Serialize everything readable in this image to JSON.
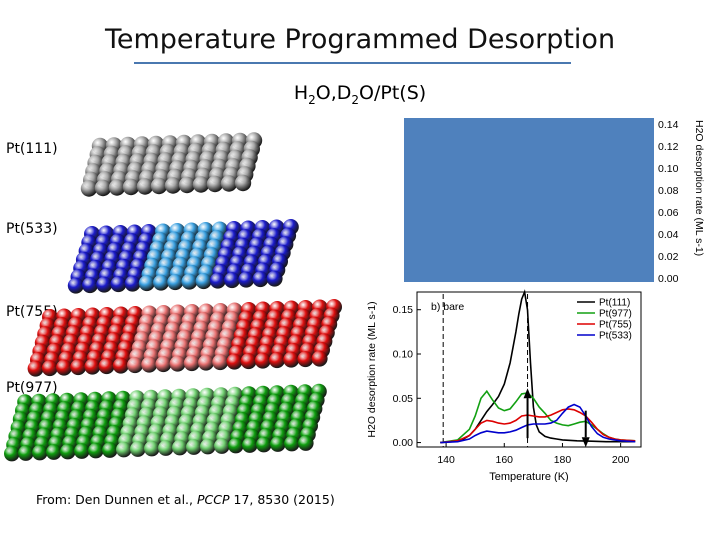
{
  "title": "Temperature Programmed Desorption",
  "subtitle": "H2O,D2O/Pt(S)",
  "surfaces": [
    {
      "label": "Pt(111)",
      "color": "#111111"
    },
    {
      "label": "Pt(533)",
      "color": "#1a1aa0"
    },
    {
      "label": "Pt(755)",
      "color": "#cc0000"
    },
    {
      "label": "Pt(977)",
      "color": "#0a8a0a"
    }
  ],
  "source": {
    "prefix": "From: Den Dunnen et al., ",
    "journal": "PCCP",
    "suffix": " 17, 8530 (2015)"
  },
  "top_panel": {
    "ylabel": "H2O desorption rate (ML s-1)",
    "yticks": [
      "0.14",
      "0.12",
      "0.10",
      "0.08",
      "0.06",
      "0.04",
      "0.02",
      "0.00"
    ],
    "fill_color": "#4f81bd"
  },
  "chart_data": {
    "type": "line",
    "panel_label": "b) bare",
    "xlabel": "Temperature (K)",
    "ylabel": "H2O desorption rate (ML s-1)",
    "xlim": [
      130,
      207
    ],
    "ylim": [
      -0.005,
      0.17
    ],
    "xticks": [
      140,
      160,
      180,
      200
    ],
    "yticks": [
      0.0,
      0.05,
      0.1,
      0.15
    ],
    "ytick_labels": [
      "0.00",
      "0.05",
      "0.10",
      "0.15"
    ],
    "vlines": [
      139,
      168
    ],
    "arrows": [
      {
        "x": 168,
        "direction": "up",
        "y_from": 0.04,
        "y_to": 0.045
      },
      {
        "x": 188,
        "direction": "down",
        "y_from": 0.035,
        "y_to": 0.0
      }
    ],
    "legend_position": "top-right",
    "series": [
      {
        "name": "Pt(111)",
        "color": "#000000",
        "x": [
          138,
          142,
          146,
          148,
          150,
          152,
          154,
          156,
          158,
          160,
          162,
          164,
          165,
          166,
          167,
          168,
          169,
          170,
          171,
          172,
          174,
          176,
          178,
          180,
          185,
          190,
          195,
          200,
          205
        ],
        "y": [
          0,
          0.001,
          0.004,
          0.008,
          0.015,
          0.025,
          0.035,
          0.043,
          0.052,
          0.066,
          0.09,
          0.125,
          0.145,
          0.162,
          0.17,
          0.15,
          0.09,
          0.04,
          0.02,
          0.012,
          0.007,
          0.005,
          0.004,
          0.003,
          0.002,
          0.0015,
          0.001,
          0.001,
          0.001
        ]
      },
      {
        "name": "Pt(977)",
        "color": "#12a012",
        "x": [
          138,
          144,
          148,
          150,
          152,
          154,
          156,
          158,
          160,
          162,
          164,
          166,
          168,
          170,
          172,
          174,
          176,
          178,
          180,
          182,
          184,
          186,
          188,
          190,
          192,
          194,
          196,
          198,
          200,
          205
        ],
        "y": [
          0,
          0.003,
          0.015,
          0.03,
          0.05,
          0.058,
          0.048,
          0.039,
          0.036,
          0.038,
          0.046,
          0.055,
          0.056,
          0.05,
          0.04,
          0.033,
          0.025,
          0.022,
          0.02,
          0.019,
          0.021,
          0.023,
          0.024,
          0.02,
          0.015,
          0.01,
          0.006,
          0.004,
          0.003,
          0.002
        ]
      },
      {
        "name": "Pt(755)",
        "color": "#dd0000",
        "x": [
          138,
          144,
          148,
          150,
          152,
          154,
          156,
          158,
          160,
          162,
          164,
          166,
          168,
          170,
          172,
          174,
          176,
          178,
          180,
          182,
          184,
          186,
          188,
          190,
          192,
          194,
          196,
          198,
          200,
          205
        ],
        "y": [
          0,
          0.002,
          0.008,
          0.015,
          0.022,
          0.025,
          0.024,
          0.022,
          0.021,
          0.022,
          0.025,
          0.03,
          0.031,
          0.03,
          0.029,
          0.029,
          0.031,
          0.034,
          0.037,
          0.038,
          0.037,
          0.034,
          0.03,
          0.023,
          0.015,
          0.009,
          0.006,
          0.004,
          0.003,
          0.002
        ]
      },
      {
        "name": "Pt(533)",
        "color": "#0000cc",
        "x": [
          138,
          144,
          148,
          150,
          152,
          154,
          156,
          158,
          160,
          162,
          164,
          166,
          168,
          170,
          172,
          174,
          176,
          178,
          180,
          182,
          184,
          186,
          188,
          190,
          192,
          194,
          196,
          198,
          200,
          205
        ],
        "y": [
          0,
          0.001,
          0.004,
          0.008,
          0.011,
          0.013,
          0.012,
          0.011,
          0.011,
          0.012,
          0.014,
          0.017,
          0.02,
          0.021,
          0.021,
          0.021,
          0.022,
          0.025,
          0.033,
          0.04,
          0.043,
          0.04,
          0.03,
          0.018,
          0.01,
          0.006,
          0.004,
          0.003,
          0.002,
          0.001
        ]
      }
    ]
  }
}
